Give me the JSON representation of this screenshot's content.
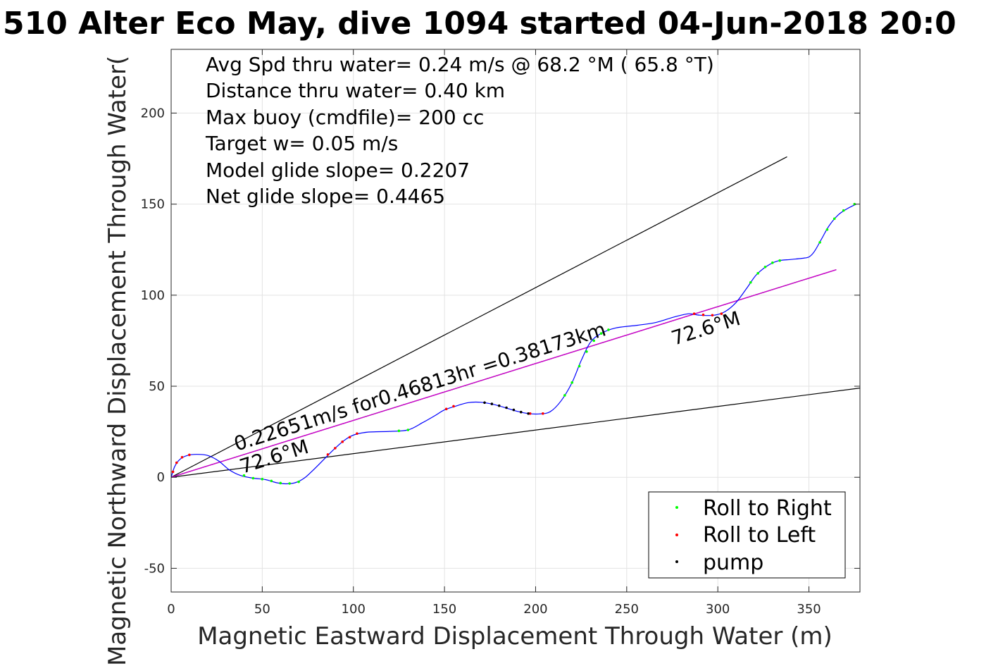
{
  "chart_data": {
    "type": "line",
    "title": "510 Alter Eco May, dive 1094 started 04-Jun-2018 20:0",
    "xlabel": "Magnetic Eastward Displacement Through Water (m)",
    "ylabel": "Magnetic Northward Displacement Through Water(",
    "xlim": [
      0,
      378
    ],
    "ylim": [
      -63,
      235
    ],
    "x_ticks": [
      0,
      50,
      100,
      150,
      200,
      250,
      300,
      350
    ],
    "y_ticks": [
      -50,
      0,
      50,
      100,
      150,
      200
    ],
    "grid": true,
    "legend_position": "bottom-right",
    "stats": [
      "Avg Spd thru water=  0.24 m/s @  68.2 °M ( 65.8 °T)",
      "Distance thru water=  0.40 km",
      "Max buoy (cmdfile)= 200 cc",
      "Target w= 0.05 m/s",
      "Model glide slope= 0.2207",
      "Net glide slope= 0.4465"
    ],
    "annotations": {
      "net_track": "0.22651m/s for0.46813hr =0.38173km",
      "heading_start": "72.6°M",
      "heading_end": "72.6°M"
    },
    "track": [
      [
        0,
        0
      ],
      [
        2,
        6
      ],
      [
        5,
        10
      ],
      [
        9,
        12
      ],
      [
        14,
        12.6
      ],
      [
        20,
        12
      ],
      [
        26,
        9
      ],
      [
        32,
        4
      ],
      [
        38,
        1
      ],
      [
        45,
        -0.5
      ],
      [
        52,
        -1.3
      ],
      [
        58,
        -3
      ],
      [
        63,
        -3.6
      ],
      [
        68,
        -3
      ],
      [
        73,
        -0.5
      ],
      [
        78,
        4
      ],
      [
        84,
        10
      ],
      [
        90,
        16
      ],
      [
        96,
        21
      ],
      [
        101,
        23.5
      ],
      [
        108,
        24.8
      ],
      [
        120,
        25.2
      ],
      [
        130,
        26
      ],
      [
        138,
        30
      ],
      [
        145,
        34
      ],
      [
        150,
        37
      ],
      [
        156,
        39
      ],
      [
        163,
        41
      ],
      [
        170,
        41.2
      ],
      [
        177,
        40
      ],
      [
        184,
        38
      ],
      [
        190,
        36.2
      ],
      [
        196,
        35
      ],
      [
        202,
        34.8
      ],
      [
        208,
        36
      ],
      [
        214,
        42
      ],
      [
        220,
        52
      ],
      [
        225,
        64
      ],
      [
        230,
        74
      ],
      [
        236,
        79
      ],
      [
        244,
        82
      ],
      [
        256,
        83.5
      ],
      [
        266,
        85
      ],
      [
        276,
        88
      ],
      [
        284,
        89.8
      ],
      [
        290,
        89
      ],
      [
        298,
        89
      ],
      [
        304,
        91
      ],
      [
        310,
        96
      ],
      [
        316,
        104
      ],
      [
        321,
        111
      ],
      [
        327,
        116
      ],
      [
        333,
        118.8
      ],
      [
        340,
        119.6
      ],
      [
        346,
        120.2
      ],
      [
        350,
        121
      ],
      [
        353,
        124
      ],
      [
        357,
        131
      ],
      [
        361,
        138
      ],
      [
        366,
        144
      ],
      [
        371,
        147.5
      ],
      [
        376,
        150
      ]
    ],
    "points": {
      "roll_to_right": [
        [
          40,
          1
        ],
        [
          45,
          -0.5
        ],
        [
          50,
          -1
        ],
        [
          55,
          -2
        ],
        [
          60,
          -3.2
        ],
        [
          65,
          -3.4
        ],
        [
          70,
          -2.5
        ],
        [
          125,
          25.5
        ],
        [
          130,
          26
        ],
        [
          216,
          45
        ],
        [
          220,
          52
        ],
        [
          224,
          61
        ],
        [
          228,
          69
        ],
        [
          232,
          75
        ],
        [
          236,
          79
        ],
        [
          240,
          81
        ],
        [
          318,
          107
        ],
        [
          322,
          112
        ],
        [
          326,
          115.5
        ],
        [
          330,
          117.8
        ],
        [
          334,
          119
        ],
        [
          356,
          129
        ],
        [
          360,
          136
        ],
        [
          364,
          142
        ],
        [
          369,
          146.5
        ],
        [
          375,
          150
        ]
      ],
      "roll_to_left": [
        [
          1,
          3
        ],
        [
          3,
          8
        ],
        [
          6,
          11
        ],
        [
          10,
          12.3
        ],
        [
          86,
          12.5
        ],
        [
          90,
          16
        ],
        [
          94,
          19.5
        ],
        [
          98,
          22
        ],
        [
          102,
          24
        ],
        [
          151,
          37.5
        ],
        [
          155,
          39
        ],
        [
          197,
          35
        ],
        [
          204,
          35
        ],
        [
          287,
          89.8
        ],
        [
          292,
          89.2
        ],
        [
          297,
          89
        ],
        [
          302,
          89.8
        ]
      ],
      "pump": [
        [
          172,
          41
        ],
        [
          176,
          40.3
        ],
        [
          180,
          39.3
        ],
        [
          184,
          38.2
        ],
        [
          188,
          37
        ],
        [
          192,
          35.8
        ],
        [
          196,
          35
        ]
      ]
    },
    "legend": [
      "Roll to Right",
      "Roll to Left",
      "pump"
    ],
    "colors": {
      "roll_to_right": "#00ff00",
      "roll_to_left": "#ff0000",
      "pump": "#000000",
      "track": "#0000ff",
      "net_track": "#cc00cc",
      "glide_lines": "#000000"
    },
    "reference_lines": {
      "upper": [
        [
          0,
          0
        ],
        [
          338,
          176
        ]
      ],
      "lower": [
        [
          0,
          0
        ],
        [
          378,
          49
        ]
      ],
      "net": [
        [
          0,
          0
        ],
        [
          365,
          114
        ]
      ]
    }
  }
}
